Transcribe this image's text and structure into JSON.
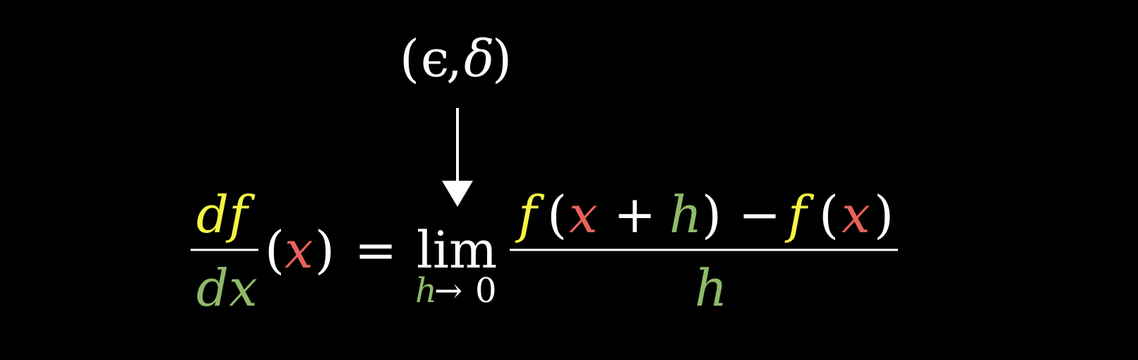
{
  "colors": {
    "background": "#000000",
    "white": "#ffffff",
    "f_yellow": "#f5f542",
    "x_red": "#e8625a",
    "h_green": "#8fba6a"
  },
  "annotation": {
    "open_paren": "(",
    "epsilon": "ϵ",
    "comma": ",",
    "delta": "δ",
    "close_paren": ")"
  },
  "lhs": {
    "numerator": "df",
    "denominator": "dx",
    "open_paren": "(",
    "x": "x",
    "close_paren": ")"
  },
  "equals": "=",
  "limit": {
    "operator": "lim",
    "sub_h": "h",
    "sub_arrow": "→",
    "sub_zero": "0"
  },
  "rhs": {
    "f1": "f",
    "open1": "(",
    "x1": "x",
    "plus": "+",
    "h1": "h",
    "close1": ")",
    "minus": "−",
    "f2": "f",
    "open2": "(",
    "x2": "x",
    "close2": ")",
    "denominator": "h"
  }
}
